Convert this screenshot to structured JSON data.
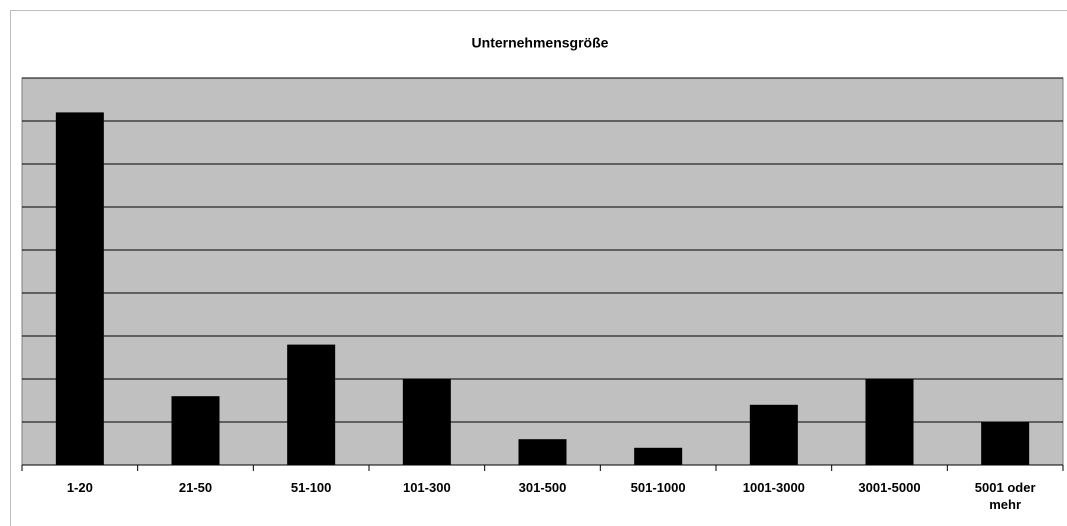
{
  "chart_data": {
    "type": "bar",
    "title": "Unternehmensgröße",
    "categories": [
      "1-20",
      "21-50",
      "51-100",
      "101-300",
      "301-500",
      "501-1000",
      "1001-3000",
      "3001-5000",
      "5001 oder mehr"
    ],
    "values": [
      8.2,
      1.6,
      2.8,
      2.0,
      0.6,
      0.4,
      1.4,
      2.0,
      1.0
    ],
    "color": "#000000",
    "ylim": [
      0,
      9
    ],
    "yticks": [
      0,
      1,
      2,
      3,
      4,
      5,
      6,
      7,
      8,
      9
    ],
    "grid": true
  }
}
